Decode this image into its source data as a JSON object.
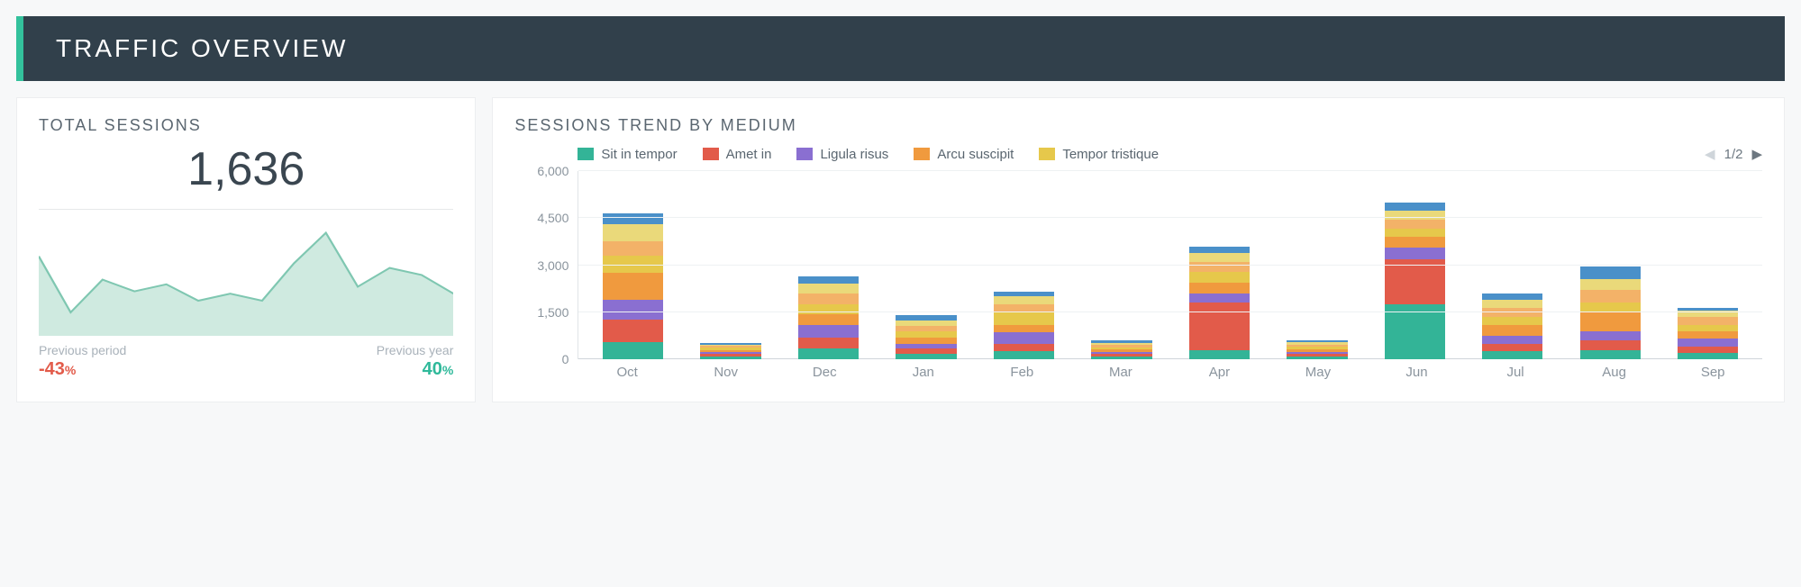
{
  "header": {
    "title": "TRAFFIC OVERVIEW",
    "bar_color": "#31404b",
    "accent_color": "#33c19c",
    "title_color": "#ffffff",
    "title_fontsize": 28,
    "title_letter_spacing": 3
  },
  "page": {
    "background_color": "#f7f8f9",
    "card_background": "#ffffff",
    "card_border_color": "#eceef0"
  },
  "total_sessions": {
    "title": "TOTAL SESSIONS",
    "value": "1,636",
    "value_fontsize": 52,
    "value_color": "#3a4650",
    "sparkline": {
      "type": "area",
      "points": [
        68,
        20,
        48,
        38,
        44,
        30,
        36,
        30,
        62,
        88,
        42,
        58,
        52,
        36
      ],
      "ylim": [
        0,
        100
      ],
      "stroke_color": "#7fc7b1",
      "fill_color": "#cfeae0",
      "stroke_width": 2
    },
    "compare": {
      "prev_period_label": "Previous period",
      "prev_period_value": "-43",
      "prev_period_suffix": "%",
      "prev_period_color": "#e25b4a",
      "prev_year_label": "Previous year",
      "prev_year_value": "40",
      "prev_year_suffix": "%",
      "prev_year_color": "#2fb99a",
      "label_color": "#a9b2ba"
    }
  },
  "sessions_trend": {
    "title": "SESSIONS TREND BY MEDIUM",
    "type": "stacked_bar",
    "ylim": [
      0,
      6000
    ],
    "ytick_step": 1500,
    "yticks": [
      "0",
      "1,500",
      "3,000",
      "4,500",
      "6,000"
    ],
    "grid_color": "#eef1f3",
    "axis_color": "#cfd5da",
    "tick_font_color": "#8a949d",
    "tick_fontsize": 14,
    "bar_width_ratio": 0.62,
    "categories": [
      "Oct",
      "Nov",
      "Dec",
      "Jan",
      "Feb",
      "Mar",
      "Apr",
      "May",
      "Jun",
      "Jul",
      "Aug",
      "Sep"
    ],
    "legend": {
      "items": [
        {
          "label": "Sit in tempor",
          "color": "#33b497"
        },
        {
          "label": "Amet in",
          "color": "#e25b4a"
        },
        {
          "label": "Ligula risus",
          "color": "#8a6fd1"
        },
        {
          "label": "Arcu suscipit",
          "color": "#f09a3e"
        },
        {
          "label": "Tempor tristique",
          "color": "#e6c84b"
        }
      ],
      "pager": {
        "current": "1",
        "total": "2",
        "sep": "/"
      }
    },
    "series_order": [
      "teal",
      "red",
      "purple",
      "orange",
      "yellow",
      "orange2",
      "yellow2",
      "blue"
    ],
    "colors": {
      "teal": "#33b497",
      "red": "#e25b4a",
      "purple": "#8a6fd1",
      "orange": "#f09a3e",
      "yellow": "#e6c84b",
      "orange2": "#f3b268",
      "yellow2": "#ead97a",
      "blue": "#4a90c9"
    },
    "data": [
      {
        "teal": 550,
        "red": 700,
        "purple": 650,
        "orange": 850,
        "yellow": 550,
        "orange2": 450,
        "yellow2": 550,
        "blue": 350
      },
      {
        "teal": 80,
        "red": 80,
        "purple": 70,
        "orange": 70,
        "yellow": 60,
        "orange2": 60,
        "yellow2": 50,
        "blue": 50
      },
      {
        "teal": 350,
        "red": 350,
        "purple": 400,
        "orange": 350,
        "yellow": 300,
        "orange2": 350,
        "yellow2": 300,
        "blue": 250
      },
      {
        "teal": 180,
        "red": 160,
        "purple": 160,
        "orange": 200,
        "yellow": 180,
        "orange2": 180,
        "yellow2": 180,
        "blue": 160
      },
      {
        "teal": 250,
        "red": 250,
        "purple": 350,
        "orange": 250,
        "yellow": 400,
        "orange2": 250,
        "yellow2": 250,
        "blue": 150
      },
      {
        "teal": 80,
        "red": 80,
        "purple": 70,
        "orange": 80,
        "yellow": 70,
        "orange2": 80,
        "yellow2": 70,
        "blue": 70
      },
      {
        "teal": 300,
        "red": 1500,
        "purple": 300,
        "orange": 350,
        "yellow": 350,
        "orange2": 300,
        "yellow2": 300,
        "blue": 200
      },
      {
        "teal": 80,
        "red": 80,
        "purple": 70,
        "orange": 80,
        "yellow": 80,
        "orange2": 80,
        "yellow2": 70,
        "blue": 60
      },
      {
        "teal": 1750,
        "red": 1450,
        "purple": 350,
        "orange": 350,
        "yellow": 250,
        "orange2": 300,
        "yellow2": 300,
        "blue": 250
      },
      {
        "teal": 250,
        "red": 250,
        "purple": 250,
        "orange": 350,
        "yellow": 250,
        "orange2": 300,
        "yellow2": 250,
        "blue": 200
      },
      {
        "teal": 300,
        "red": 300,
        "purple": 300,
        "orange": 600,
        "yellow": 300,
        "orange2": 400,
        "yellow2": 350,
        "blue": 400
      },
      {
        "teal": 200,
        "red": 200,
        "purple": 250,
        "orange": 250,
        "yellow": 200,
        "orange2": 250,
        "yellow2": 200,
        "blue": 100
      }
    ]
  }
}
